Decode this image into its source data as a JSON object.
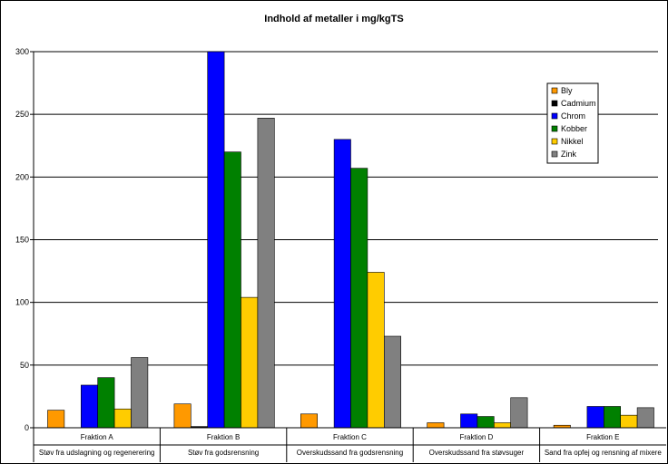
{
  "chart_data": {
    "type": "bar",
    "title": "Indhold af metaller i mg/kgTS",
    "xlabel": "",
    "ylabel": "",
    "ylim": [
      0,
      300
    ],
    "yticks": [
      0,
      50,
      100,
      150,
      200,
      250,
      300
    ],
    "grid": true,
    "legend_position": "top-right",
    "categories": [
      {
        "name": "Fraktion A",
        "description": "Støv fra udslagning og regenerering"
      },
      {
        "name": "Fraktion B",
        "description": "Støv fra godsrensning"
      },
      {
        "name": "Fraktion C",
        "description": "Overskudssand fra godsrensning"
      },
      {
        "name": "Fraktion D",
        "description": "Overskudssand fra støvsuger"
      },
      {
        "name": "Fraktion E",
        "description": "Sand fra opfej og rensning af mixere"
      }
    ],
    "series": [
      {
        "name": "Bly",
        "color": "#FF9900",
        "values": [
          14,
          19,
          11,
          4,
          2
        ]
      },
      {
        "name": "Cadmium",
        "color": "#000000",
        "values": [
          0,
          1,
          0,
          0,
          0
        ]
      },
      {
        "name": "Chrom",
        "color": "#0000FF",
        "values": [
          34,
          300,
          230,
          11,
          17
        ]
      },
      {
        "name": "Kobber",
        "color": "#008000",
        "values": [
          40,
          220,
          207,
          9,
          17
        ]
      },
      {
        "name": "Nikkel",
        "color": "#FFCC00",
        "values": [
          15,
          104,
          124,
          4,
          10
        ]
      },
      {
        "name": "Zink",
        "color": "#808080",
        "values": [
          56,
          247,
          73,
          24,
          16
        ]
      }
    ]
  }
}
